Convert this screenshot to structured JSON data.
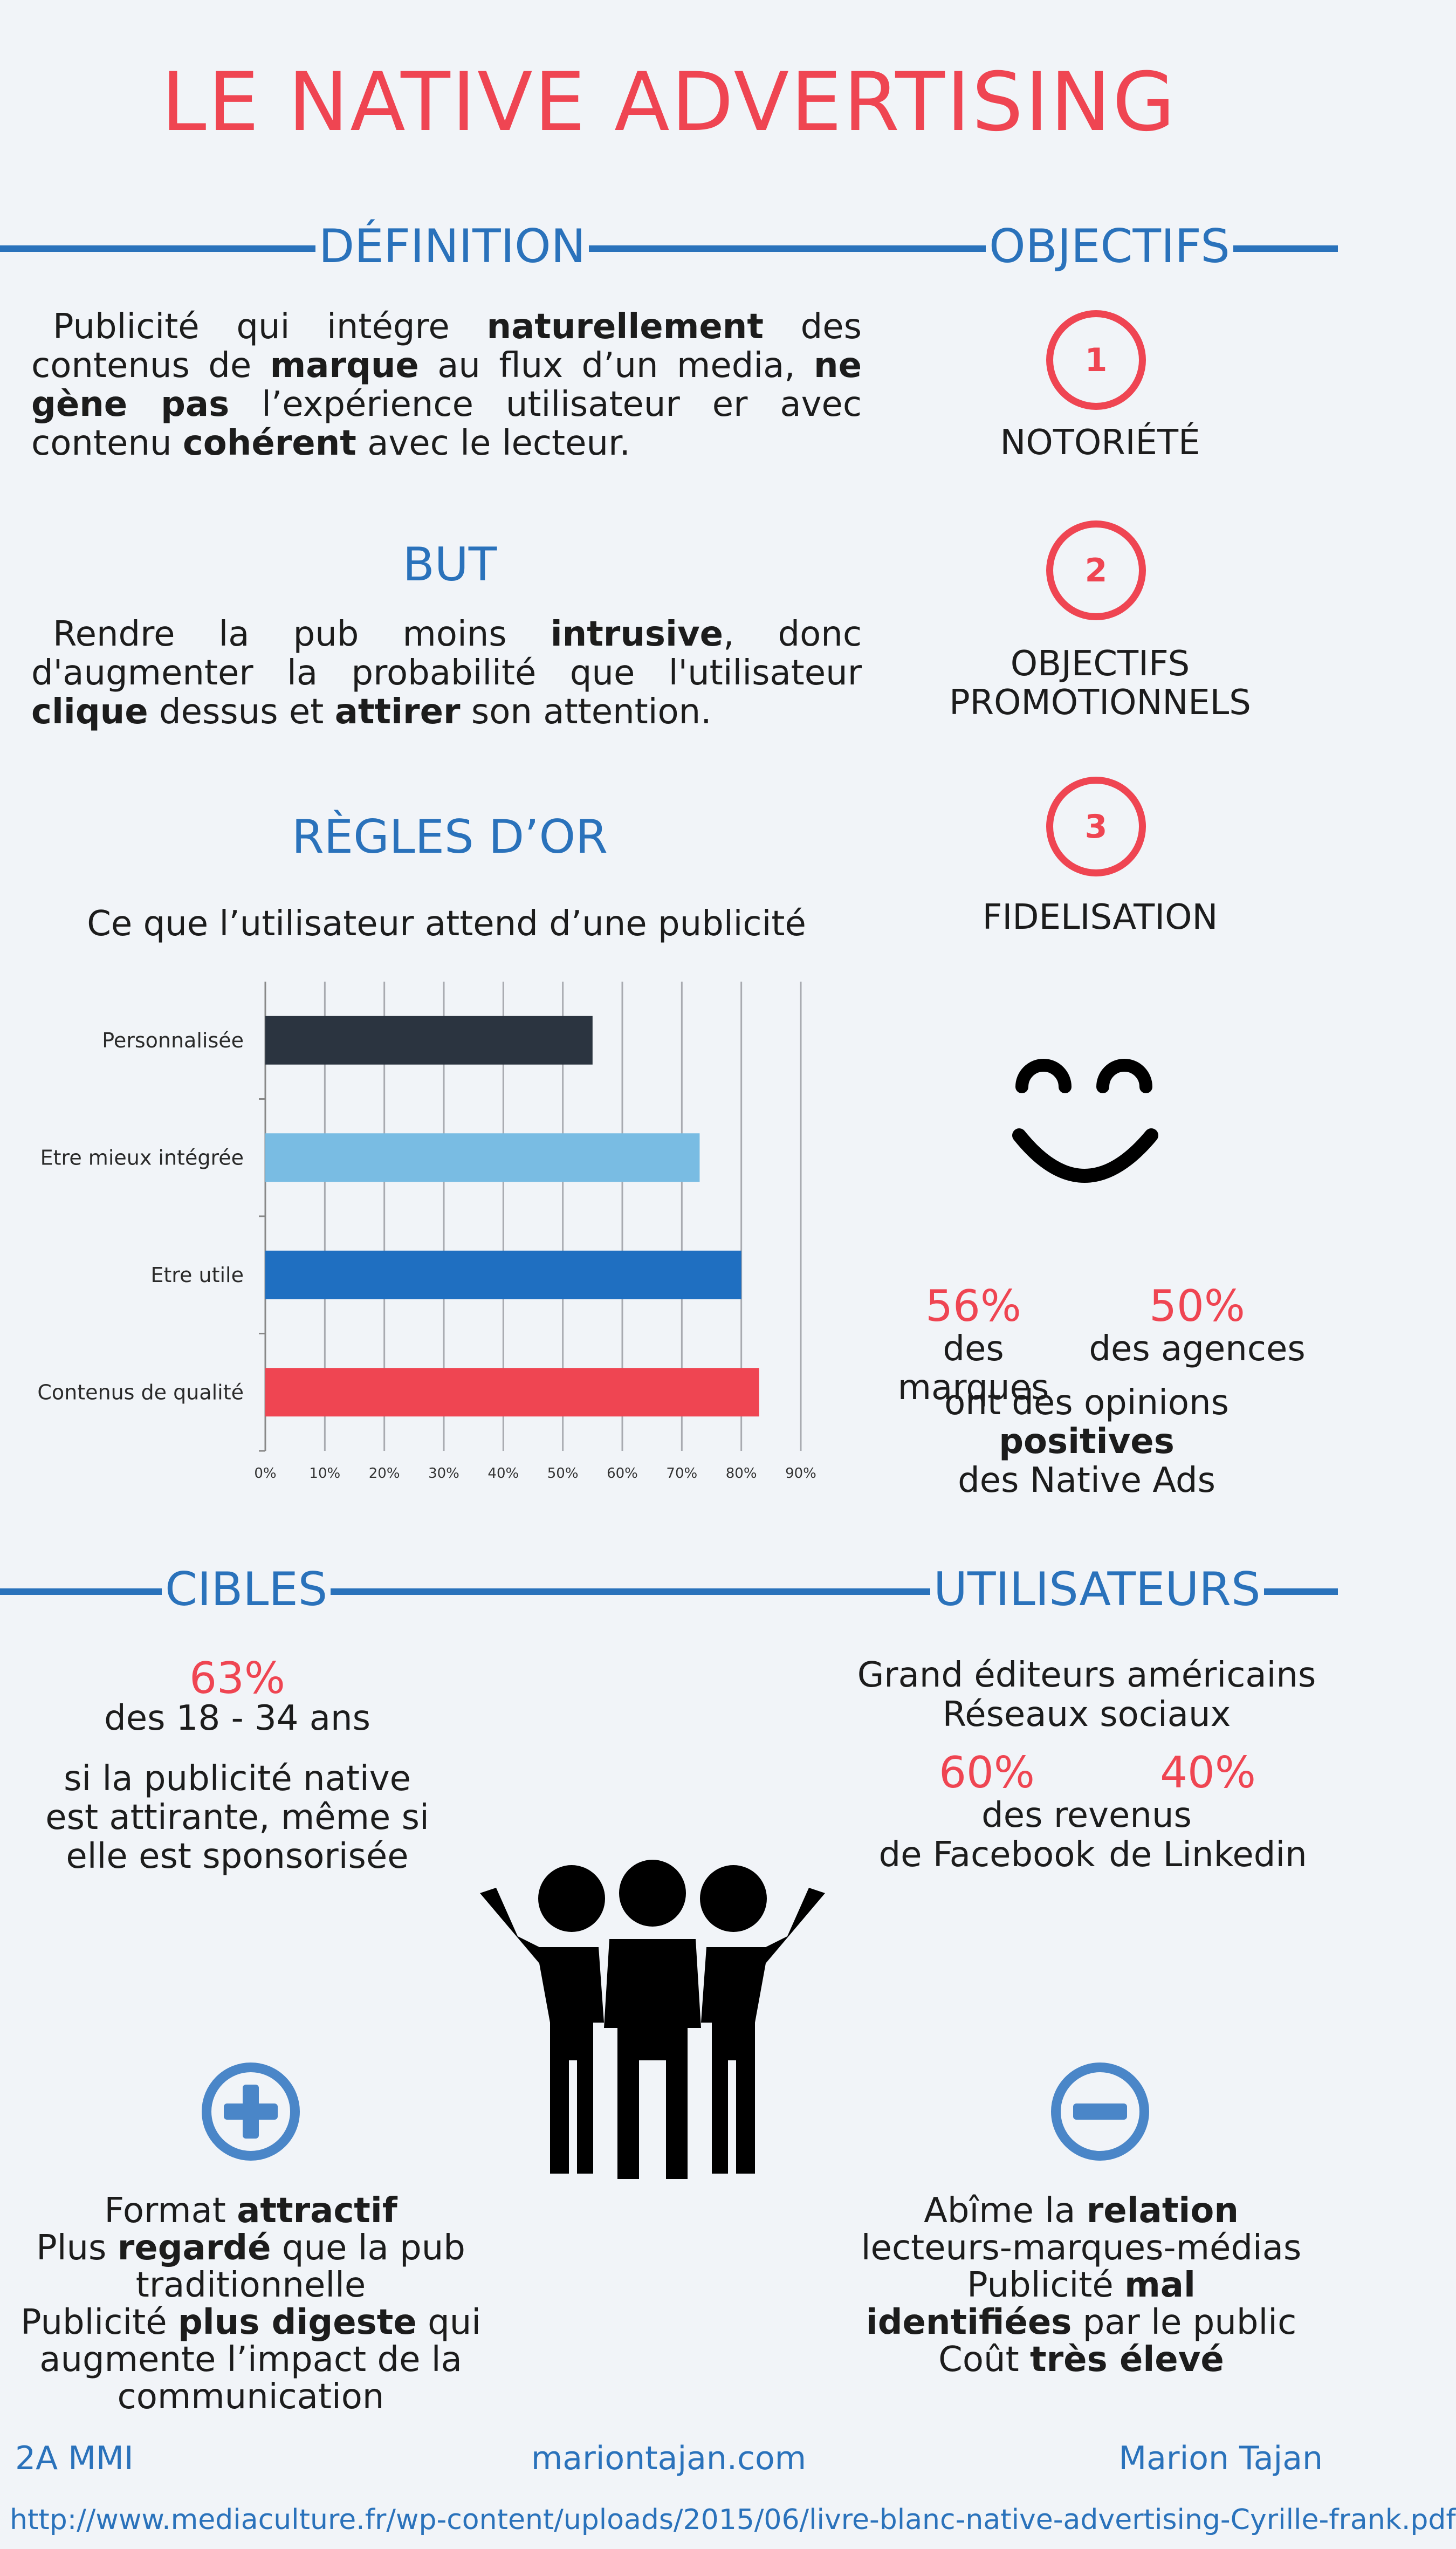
{
  "title": "LE NATIVE ADVERTISING",
  "definition": {
    "heading": "DÉFINITION",
    "text_parts": [
      {
        "t": "Publicité qui intégre ",
        "b": false
      },
      {
        "t": "naturellement",
        "b": true
      },
      {
        "t": " des contenus de ",
        "b": false
      },
      {
        "t": "marque",
        "b": true
      },
      {
        "t": " au flux d’un media, ",
        "b": false
      },
      {
        "t": "ne gène pas",
        "b": true
      },
      {
        "t": " l’expérience utilisateur er avec contenu ",
        "b": false
      },
      {
        "t": "cohérent",
        "b": true
      },
      {
        "t": " avec le lecteur.",
        "b": false
      }
    ]
  },
  "objectifs": {
    "heading": "OBJECTIFS",
    "items": [
      {
        "num": "1",
        "label": "NOTORIÉTÉ"
      },
      {
        "num": "2",
        "label": "OBJECTIFS PROMOTIONNELS"
      },
      {
        "num": "3",
        "label": "FIDELISATION"
      }
    ]
  },
  "but": {
    "heading": "BUT",
    "text_parts": [
      {
        "t": "Rendre la pub moins ",
        "b": false
      },
      {
        "t": "intrusive",
        "b": true
      },
      {
        "t": ", donc d'augmenter la probabilité que l'utilisateur ",
        "b": false
      },
      {
        "t": "clique",
        "b": true
      },
      {
        "t": " dessus et ",
        "b": false
      },
      {
        "t": "attirer",
        "b": true
      },
      {
        "t": " son attention.",
        "b": false
      }
    ]
  },
  "regles": {
    "heading": "RÈGLES D’OR",
    "subtitle": "Ce que l’utilisateur attend d’une publicité"
  },
  "chart_data": {
    "type": "bar",
    "orientation": "horizontal",
    "categories": [
      "Personnalisée",
      "Etre mieux intégrée",
      "Etre utile",
      "Contenus de qualité"
    ],
    "values": [
      55,
      73,
      80,
      83
    ],
    "colors": [
      "#2b3440",
      "#79bce3",
      "#1f6fc1",
      "#ef4552"
    ],
    "xlim": [
      0,
      90
    ],
    "xticks": [
      "0%",
      "10%",
      "20%",
      "30%",
      "40%",
      "50%",
      "60%",
      "70%",
      "80%",
      "90%"
    ],
    "grid": true
  },
  "opinions": {
    "stat1": {
      "value": "56%",
      "label": "des marques"
    },
    "stat2": {
      "value": "50%",
      "label": "des agences"
    },
    "text_pre": "ont des opinions ",
    "text_bold": "positives",
    "text_post": "des Native Ads"
  },
  "cibles": {
    "heading": "CIBLES",
    "stat": "63%",
    "stat_label": "des 18 - 34 ans",
    "text": "si la publicité native est attirante, même si elle est sponsorisée"
  },
  "utilisateurs": {
    "heading": "UTILISATEURS",
    "line1": "Grand éditeurs américains",
    "line2": "Réseaux sociaux",
    "stat1": "60%",
    "stat2": "40%",
    "revenus": "des revenus",
    "label1": "de Facebook",
    "label2": "de Linkedin"
  },
  "pros": {
    "icon": "plus-circle-icon",
    "lines": [
      [
        {
          "t": "Format ",
          "b": false
        },
        {
          "t": "attractif",
          "b": true
        }
      ],
      [
        {
          "t": "Plus ",
          "b": false
        },
        {
          "t": "regardé",
          "b": true
        },
        {
          "t": " que la pub",
          "b": false
        }
      ],
      [
        {
          "t": "traditionnelle",
          "b": false
        }
      ],
      [
        {
          "t": "Publicité ",
          "b": false
        },
        {
          "t": "plus digeste",
          "b": true
        },
        {
          "t": " qui",
          "b": false
        }
      ],
      [
        {
          "t": "augmente l’impact de la",
          "b": false
        }
      ],
      [
        {
          "t": "communication",
          "b": false
        }
      ]
    ]
  },
  "cons": {
    "icon": "minus-circle-icon",
    "lines": [
      [
        {
          "t": "Abîme la ",
          "b": false
        },
        {
          "t": "relation",
          "b": true
        }
      ],
      [
        {
          "t": "lecteurs-marques-médias",
          "b": false
        }
      ],
      [
        {
          "t": "Publicité ",
          "b": false
        },
        {
          "t": "mal",
          "b": true
        }
      ],
      [
        {
          "t": "identifiées",
          "b": true
        },
        {
          "t": " par le public",
          "b": false
        }
      ],
      [
        {
          "t": "Coût ",
          "b": false
        },
        {
          "t": "très élevé",
          "b": true
        }
      ]
    ]
  },
  "footer": {
    "left": "2A MMI",
    "center": "mariontajan.com",
    "right": "Marion Tajan",
    "url": "http://www.mediaculture.fr/wp-content/uploads/2015/06/livre-blanc-native-advertising-Cyrille-frank.pdf"
  },
  "colors": {
    "accent_blue": "#2a72bb",
    "accent_red": "#ef4552",
    "background": "#f1f4f8"
  }
}
